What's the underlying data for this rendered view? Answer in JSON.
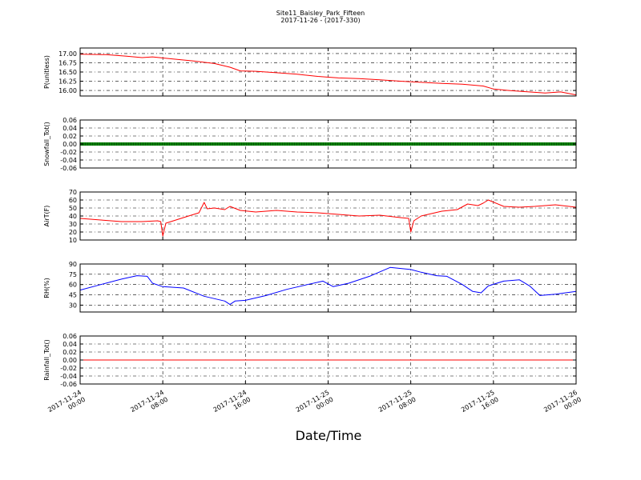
{
  "figure": {
    "title": "Site11_Baisley_Park_Fifteen",
    "subtitle": "2017-11-26 - (2017-330)",
    "xlabel": "Date/Time"
  },
  "x_ticks": [
    {
      "line1": "2017-11-24",
      "line2": "00:00",
      "hours": 0
    },
    {
      "line1": "2017-11-24",
      "line2": "08:00",
      "hours": 8
    },
    {
      "line1": "2017-11-24",
      "line2": "16:00",
      "hours": 16
    },
    {
      "line1": "2017-11-25",
      "line2": "00:00",
      "hours": 24
    },
    {
      "line1": "2017-11-25",
      "line2": "08:00",
      "hours": 32
    },
    {
      "line1": "2017-11-25",
      "line2": "16:00",
      "hours": 40
    },
    {
      "line1": "2017-11-26",
      "line2": "00:00",
      "hours": 48
    }
  ],
  "chart_data": [
    {
      "type": "line",
      "ylabel": "P(unitless)",
      "color": "#ff0000",
      "ylim": [
        15.85,
        17.15
      ],
      "yticks": [
        "16.00",
        "16.25",
        "16.50",
        "16.75",
        "17.00"
      ],
      "yticks_values": [
        16.0,
        16.25,
        16.5,
        16.75,
        17.0
      ],
      "x_hours": [
        0,
        2.5,
        4.5,
        6,
        7,
        9,
        11,
        13,
        14.5,
        15.5,
        17,
        19,
        21,
        23,
        25,
        27,
        29,
        31,
        33,
        35,
        37,
        39,
        40,
        41.5,
        43,
        45,
        46.5,
        48
      ],
      "y": [
        16.98,
        16.97,
        16.93,
        16.89,
        16.91,
        16.85,
        16.8,
        16.73,
        16.63,
        16.53,
        16.52,
        16.48,
        16.44,
        16.38,
        16.34,
        16.32,
        16.29,
        16.25,
        16.22,
        16.19,
        16.17,
        16.12,
        16.04,
        16.0,
        15.97,
        15.93,
        15.96,
        15.88
      ]
    },
    {
      "type": "line",
      "ylabel": "Snowfall_Tot()",
      "color": "#008000",
      "ylim": [
        -0.06,
        0.06
      ],
      "yticks": [
        "-0.06",
        "-0.04",
        "-0.02",
        "0.00",
        "0.02",
        "0.04",
        "0.06"
      ],
      "yticks_values": [
        -0.06,
        -0.04,
        -0.02,
        0.0,
        0.02,
        0.04,
        0.06
      ],
      "x_hours": [
        0,
        48
      ],
      "y": [
        0.0,
        0.0
      ]
    },
    {
      "type": "line",
      "ylabel": "AirT(F)",
      "color": "#ff0000",
      "ylim": [
        10,
        70
      ],
      "yticks": [
        "10",
        "20",
        "30",
        "40",
        "50",
        "60",
        "70"
      ],
      "yticks_values": [
        10,
        20,
        30,
        40,
        50,
        60,
        70
      ],
      "x_hours": [
        0,
        2,
        4,
        6,
        7.5,
        7.8,
        8,
        8.3,
        10,
        11.5,
        12,
        12.3,
        13,
        14,
        14.5,
        15.5,
        17,
        19,
        21,
        23,
        25,
        27,
        29,
        31,
        31.8,
        32,
        32.3,
        33,
        35,
        36.5,
        37.5,
        38.5,
        39,
        39.5,
        41,
        42.5,
        44,
        46,
        48
      ],
      "y": [
        37,
        35,
        33,
        33,
        34,
        33,
        15,
        31,
        38,
        44,
        57,
        49,
        50,
        48,
        52,
        47,
        45,
        47,
        45,
        44,
        42,
        40,
        41,
        38,
        37,
        20,
        34,
        40,
        46,
        48,
        55,
        53,
        56,
        60,
        52,
        51,
        52,
        54,
        51
      ]
    },
    {
      "type": "line",
      "ylabel": "RH(%)",
      "color": "#0000ff",
      "ylim": [
        20,
        90
      ],
      "yticks": [
        "30",
        "45",
        "60",
        "75",
        "90"
      ],
      "yticks_values": [
        30,
        45,
        60,
        75,
        90
      ],
      "x_hours": [
        0,
        2,
        4,
        5.5,
        6.5,
        7,
        8,
        10,
        12,
        14,
        14.5,
        15,
        16,
        18,
        20,
        22,
        23.5,
        24.5,
        26,
        28,
        30,
        32,
        33,
        34.5,
        35.5,
        37,
        38,
        38.8,
        39.5,
        41,
        42.5,
        43.5,
        44.5,
        46,
        48
      ],
      "y": [
        52,
        60,
        68,
        73,
        72,
        62,
        57,
        55,
        43,
        36,
        31,
        36,
        37,
        44,
        53,
        60,
        65,
        57,
        62,
        72,
        85,
        82,
        78,
        73,
        72,
        60,
        50,
        48,
        58,
        65,
        67,
        58,
        44,
        46,
        50
      ]
    },
    {
      "type": "line",
      "ylabel": "Rainfall_Tot()",
      "color": "#ff0000",
      "ylim": [
        -0.06,
        0.06
      ],
      "yticks": [
        "-0.06",
        "-0.04",
        "-0.02",
        "0.00",
        "0.02",
        "0.04",
        "0.06"
      ],
      "yticks_values": [
        -0.06,
        -0.04,
        -0.02,
        0.0,
        0.02,
        0.04,
        0.06
      ],
      "x_hours": [
        0,
        48
      ],
      "y": [
        0.0,
        0.0
      ]
    }
  ]
}
